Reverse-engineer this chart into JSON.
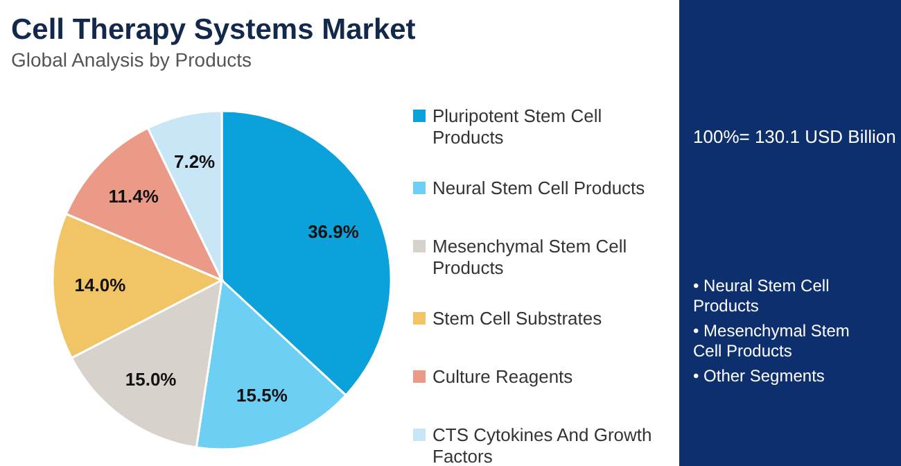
{
  "chart_data": {
    "type": "pie",
    "title": "Cell Therapy Systems Market",
    "subtitle": "Global Analysis by Products",
    "categories": [
      "Pluripotent Stem Cell Products",
      "Neural Stem Cell Products",
      "Mesenchymal Stem Cell Products",
      "Stem Cell Substrates",
      "Culture Reagents",
      "CTS Cytokines And Growth Factors"
    ],
    "values": [
      36.9,
      15.5,
      15.0,
      14.0,
      11.4,
      7.2
    ],
    "colors": [
      "#0ba2dc",
      "#6ccff3",
      "#d8d2cd",
      "#f1c565",
      "#ea9a86",
      "#c8e6f6"
    ],
    "value_labels": [
      "36.9%",
      "15.5%",
      "15.0%",
      "14.0%",
      "11.4%",
      "7.2%"
    ],
    "legend": "right",
    "annotations": [
      "100%= 130.1 USD Billion",
      "• Neural Stem Cell Products",
      "• Mesenchymal Stem Cell Products",
      "• Other Segments"
    ]
  }
}
